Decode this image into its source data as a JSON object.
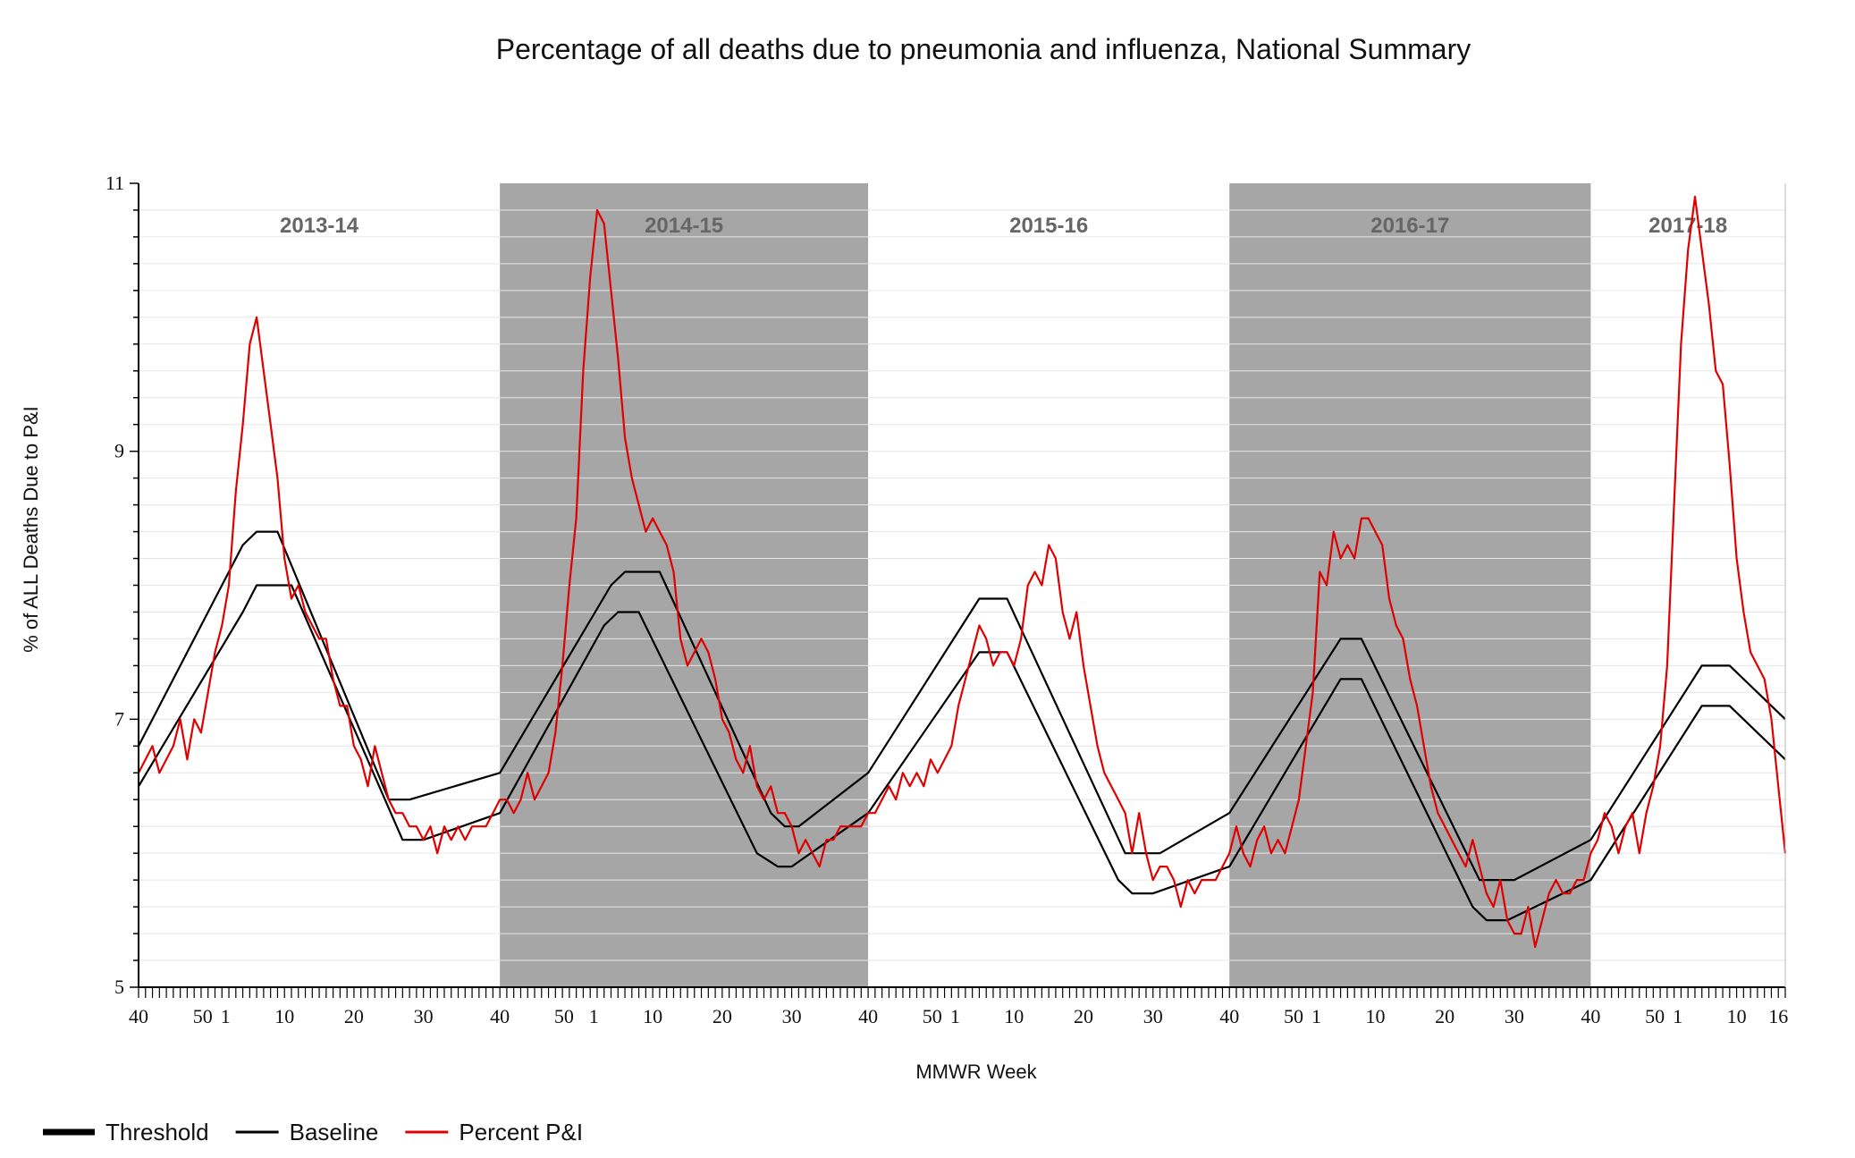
{
  "chart_data": {
    "type": "line",
    "title": "Percentage of all deaths due to pneumonia and influenza, National Summary",
    "xlabel": "MMWR Week",
    "ylabel": "% of ALL Deaths Due to P&I",
    "ylim": [
      5,
      11
    ],
    "yticks": [
      "5",
      "7",
      "9",
      "11"
    ],
    "x_range_weeks_since_start": [
      0,
      237
    ],
    "season_labels": [
      "2013-14",
      "2014-15",
      "2015-16",
      "2016-17",
      "2017-18"
    ],
    "season_shaded": [
      false,
      true,
      false,
      true,
      false
    ],
    "xticks": [
      {
        "label": "40",
        "i": 0
      },
      {
        "label": "50",
        "i": 10
      },
      {
        "label": "1",
        "i": 12
      },
      {
        "label": "10",
        "i": 21
      },
      {
        "label": "20",
        "i": 31
      },
      {
        "label": "30",
        "i": 41
      },
      {
        "label": "40",
        "i": 52
      },
      {
        "label": "50",
        "i": 62
      },
      {
        "label": "1",
        "i": 65
      },
      {
        "label": "10",
        "i": 74
      },
      {
        "label": "20",
        "i": 84
      },
      {
        "label": "30",
        "i": 94
      },
      {
        "label": "40",
        "i": 105
      },
      {
        "label": "50",
        "i": 115
      },
      {
        "label": "1",
        "i": 117
      },
      {
        "label": "10",
        "i": 126
      },
      {
        "label": "20",
        "i": 136
      },
      {
        "label": "30",
        "i": 146
      },
      {
        "label": "40",
        "i": 157
      },
      {
        "label": "50",
        "i": 167
      },
      {
        "label": "1",
        "i": 169
      },
      {
        "label": "10",
        "i": 178
      },
      {
        "label": "20",
        "i": 188
      },
      {
        "label": "30",
        "i": 198
      },
      {
        "label": "40",
        "i": 209
      },
      {
        "label": "50",
        "i": 219
      },
      {
        "label": "1",
        "i": 221
      },
      {
        "label": "10",
        "i": 230
      },
      {
        "label": "16",
        "i": 236
      }
    ],
    "legend": [
      {
        "name": "Threshold",
        "color": "#000000",
        "style": "thick"
      },
      {
        "name": "Baseline",
        "color": "#000000",
        "style": "thin"
      },
      {
        "name": "Percent P&I",
        "color": "#e00000",
        "style": "thin"
      }
    ],
    "series": [
      {
        "name": "Threshold",
        "color": "#000000",
        "points": [
          [
            0,
            6.8
          ],
          [
            15,
            8.3
          ],
          [
            17,
            8.4
          ],
          [
            20,
            8.4
          ],
          [
            36,
            6.4
          ],
          [
            39,
            6.4
          ],
          [
            52,
            6.6
          ],
          [
            68,
            8.0
          ],
          [
            70,
            8.1
          ],
          [
            75,
            8.1
          ],
          [
            91,
            6.3
          ],
          [
            93,
            6.2
          ],
          [
            95,
            6.2
          ],
          [
            105,
            6.6
          ],
          [
            121,
            7.9
          ],
          [
            125,
            7.9
          ],
          [
            142,
            6.0
          ],
          [
            147,
            6.0
          ],
          [
            157,
            6.3
          ],
          [
            173,
            7.6
          ],
          [
            176,
            7.6
          ],
          [
            193,
            5.8
          ],
          [
            198,
            5.8
          ],
          [
            209,
            6.1
          ],
          [
            225,
            7.4
          ],
          [
            229,
            7.4
          ],
          [
            237,
            7.0
          ]
        ]
      },
      {
        "name": "Baseline",
        "color": "#000000",
        "points": [
          [
            0,
            6.5
          ],
          [
            15,
            7.8
          ],
          [
            17,
            8.0
          ],
          [
            22,
            8.0
          ],
          [
            38,
            6.1
          ],
          [
            41,
            6.1
          ],
          [
            52,
            6.3
          ],
          [
            67,
            7.7
          ],
          [
            69,
            7.8
          ],
          [
            72,
            7.8
          ],
          [
            89,
            6.0
          ],
          [
            92,
            5.9
          ],
          [
            94,
            5.9
          ],
          [
            105,
            6.3
          ],
          [
            121,
            7.5
          ],
          [
            125,
            7.5
          ],
          [
            141,
            5.8
          ],
          [
            143,
            5.7
          ],
          [
            146,
            5.7
          ],
          [
            157,
            5.9
          ],
          [
            173,
            7.3
          ],
          [
            176,
            7.3
          ],
          [
            192,
            5.6
          ],
          [
            194,
            5.5
          ],
          [
            197,
            5.5
          ],
          [
            209,
            5.8
          ],
          [
            225,
            7.1
          ],
          [
            229,
            7.1
          ],
          [
            237,
            6.7
          ]
        ]
      },
      {
        "name": "Percent P&I",
        "color": "#e00000",
        "points": [
          [
            0,
            6.6
          ],
          [
            1,
            6.7
          ],
          [
            2,
            6.8
          ],
          [
            3,
            6.6
          ],
          [
            4,
            6.7
          ],
          [
            5,
            6.8
          ],
          [
            6,
            7.0
          ],
          [
            7,
            6.7
          ],
          [
            8,
            7.0
          ],
          [
            9,
            6.9
          ],
          [
            10,
            7.2
          ],
          [
            11,
            7.5
          ],
          [
            12,
            7.7
          ],
          [
            13,
            8.0
          ],
          [
            14,
            8.7
          ],
          [
            15,
            9.2
          ],
          [
            16,
            9.8
          ],
          [
            17,
            10.0
          ],
          [
            18,
            9.6
          ],
          [
            19,
            9.2
          ],
          [
            20,
            8.8
          ],
          [
            21,
            8.2
          ],
          [
            22,
            7.9
          ],
          [
            23,
            8.0
          ],
          [
            24,
            7.8
          ],
          [
            25,
            7.7
          ],
          [
            26,
            7.6
          ],
          [
            27,
            7.6
          ],
          [
            28,
            7.3
          ],
          [
            29,
            7.1
          ],
          [
            30,
            7.1
          ],
          [
            31,
            6.8
          ],
          [
            32,
            6.7
          ],
          [
            33,
            6.5
          ],
          [
            34,
            6.8
          ],
          [
            35,
            6.6
          ],
          [
            36,
            6.4
          ],
          [
            37,
            6.3
          ],
          [
            38,
            6.3
          ],
          [
            39,
            6.2
          ],
          [
            40,
            6.2
          ],
          [
            41,
            6.1
          ],
          [
            42,
            6.2
          ],
          [
            43,
            6.0
          ],
          [
            44,
            6.2
          ],
          [
            45,
            6.1
          ],
          [
            46,
            6.2
          ],
          [
            47,
            6.1
          ],
          [
            48,
            6.2
          ],
          [
            49,
            6.2
          ],
          [
            50,
            6.2
          ],
          [
            51,
            6.3
          ],
          [
            52,
            6.4
          ],
          [
            53,
            6.4
          ],
          [
            54,
            6.3
          ],
          [
            55,
            6.4
          ],
          [
            56,
            6.6
          ],
          [
            57,
            6.4
          ],
          [
            58,
            6.5
          ],
          [
            59,
            6.6
          ],
          [
            60,
            6.9
          ],
          [
            61,
            7.4
          ],
          [
            62,
            8.0
          ],
          [
            63,
            8.5
          ],
          [
            64,
            9.6
          ],
          [
            65,
            10.3
          ],
          [
            66,
            10.8
          ],
          [
            67,
            10.7
          ],
          [
            68,
            10.2
          ],
          [
            69,
            9.7
          ],
          [
            70,
            9.1
          ],
          [
            71,
            8.8
          ],
          [
            72,
            8.6
          ],
          [
            73,
            8.4
          ],
          [
            74,
            8.5
          ],
          [
            75,
            8.4
          ],
          [
            76,
            8.3
          ],
          [
            77,
            8.1
          ],
          [
            78,
            7.6
          ],
          [
            79,
            7.4
          ],
          [
            80,
            7.5
          ],
          [
            81,
            7.6
          ],
          [
            82,
            7.5
          ],
          [
            83,
            7.3
          ],
          [
            84,
            7.0
          ],
          [
            85,
            6.9
          ],
          [
            86,
            6.7
          ],
          [
            87,
            6.6
          ],
          [
            88,
            6.8
          ],
          [
            89,
            6.5
          ],
          [
            90,
            6.4
          ],
          [
            91,
            6.5
          ],
          [
            92,
            6.3
          ],
          [
            93,
            6.3
          ],
          [
            94,
            6.2
          ],
          [
            95,
            6.0
          ],
          [
            96,
            6.1
          ],
          [
            97,
            6.0
          ],
          [
            98,
            5.9
          ],
          [
            99,
            6.1
          ],
          [
            100,
            6.1
          ],
          [
            101,
            6.2
          ],
          [
            102,
            6.2
          ],
          [
            103,
            6.2
          ],
          [
            104,
            6.2
          ],
          [
            105,
            6.3
          ],
          [
            106,
            6.3
          ],
          [
            107,
            6.4
          ],
          [
            108,
            6.5
          ],
          [
            109,
            6.4
          ],
          [
            110,
            6.6
          ],
          [
            111,
            6.5
          ],
          [
            112,
            6.6
          ],
          [
            113,
            6.5
          ],
          [
            114,
            6.7
          ],
          [
            115,
            6.6
          ],
          [
            116,
            6.7
          ],
          [
            117,
            6.8
          ],
          [
            118,
            7.1
          ],
          [
            119,
            7.3
          ],
          [
            120,
            7.5
          ],
          [
            121,
            7.7
          ],
          [
            122,
            7.6
          ],
          [
            123,
            7.4
          ],
          [
            124,
            7.5
          ],
          [
            125,
            7.5
          ],
          [
            126,
            7.4
          ],
          [
            127,
            7.6
          ],
          [
            128,
            8.0
          ],
          [
            129,
            8.1
          ],
          [
            130,
            8.0
          ],
          [
            131,
            8.3
          ],
          [
            132,
            8.2
          ],
          [
            133,
            7.8
          ],
          [
            134,
            7.6
          ],
          [
            135,
            7.8
          ],
          [
            136,
            7.4
          ],
          [
            137,
            7.1
          ],
          [
            138,
            6.8
          ],
          [
            139,
            6.6
          ],
          [
            140,
            6.5
          ],
          [
            141,
            6.4
          ],
          [
            142,
            6.3
          ],
          [
            143,
            6.0
          ],
          [
            144,
            6.3
          ],
          [
            145,
            6.0
          ],
          [
            146,
            5.8
          ],
          [
            147,
            5.9
          ],
          [
            148,
            5.9
          ],
          [
            149,
            5.8
          ],
          [
            150,
            5.6
          ],
          [
            151,
            5.8
          ],
          [
            152,
            5.7
          ],
          [
            153,
            5.8
          ],
          [
            154,
            5.8
          ],
          [
            155,
            5.8
          ],
          [
            156,
            5.9
          ],
          [
            157,
            6.0
          ],
          [
            158,
            6.2
          ],
          [
            159,
            6.0
          ],
          [
            160,
            5.9
          ],
          [
            161,
            6.1
          ],
          [
            162,
            6.2
          ],
          [
            163,
            6.0
          ],
          [
            164,
            6.1
          ],
          [
            165,
            6.0
          ],
          [
            166,
            6.2
          ],
          [
            167,
            6.4
          ],
          [
            168,
            6.8
          ],
          [
            169,
            7.2
          ],
          [
            170,
            8.1
          ],
          [
            171,
            8.0
          ],
          [
            172,
            8.4
          ],
          [
            173,
            8.2
          ],
          [
            174,
            8.3
          ],
          [
            175,
            8.2
          ],
          [
            176,
            8.5
          ],
          [
            177,
            8.5
          ],
          [
            178,
            8.4
          ],
          [
            179,
            8.3
          ],
          [
            180,
            7.9
          ],
          [
            181,
            7.7
          ],
          [
            182,
            7.6
          ],
          [
            183,
            7.3
          ],
          [
            184,
            7.1
          ],
          [
            185,
            6.8
          ],
          [
            186,
            6.5
          ],
          [
            187,
            6.3
          ],
          [
            188,
            6.2
          ],
          [
            189,
            6.1
          ],
          [
            190,
            6.0
          ],
          [
            191,
            5.9
          ],
          [
            192,
            6.1
          ],
          [
            193,
            5.9
          ],
          [
            194,
            5.7
          ],
          [
            195,
            5.6
          ],
          [
            196,
            5.8
          ],
          [
            197,
            5.5
          ],
          [
            198,
            5.4
          ],
          [
            199,
            5.4
          ],
          [
            200,
            5.6
          ],
          [
            201,
            5.3
          ],
          [
            202,
            5.5
          ],
          [
            203,
            5.7
          ],
          [
            204,
            5.8
          ],
          [
            205,
            5.7
          ],
          [
            206,
            5.7
          ],
          [
            207,
            5.8
          ],
          [
            208,
            5.8
          ],
          [
            209,
            6.0
          ],
          [
            210,
            6.1
          ],
          [
            211,
            6.3
          ],
          [
            212,
            6.2
          ],
          [
            213,
            6.0
          ],
          [
            214,
            6.2
          ],
          [
            215,
            6.3
          ],
          [
            216,
            6.0
          ],
          [
            217,
            6.3
          ],
          [
            218,
            6.5
          ],
          [
            219,
            6.8
          ],
          [
            220,
            7.4
          ],
          [
            221,
            8.6
          ],
          [
            222,
            9.8
          ],
          [
            223,
            10.5
          ],
          [
            224,
            10.9
          ],
          [
            225,
            10.5
          ],
          [
            226,
            10.1
          ],
          [
            227,
            9.6
          ],
          [
            228,
            9.5
          ],
          [
            229,
            8.9
          ],
          [
            230,
            8.2
          ],
          [
            231,
            7.8
          ],
          [
            232,
            7.5
          ],
          [
            233,
            7.4
          ],
          [
            234,
            7.3
          ],
          [
            235,
            7.0
          ],
          [
            236,
            6.5
          ],
          [
            237,
            6.0
          ]
        ]
      }
    ]
  }
}
